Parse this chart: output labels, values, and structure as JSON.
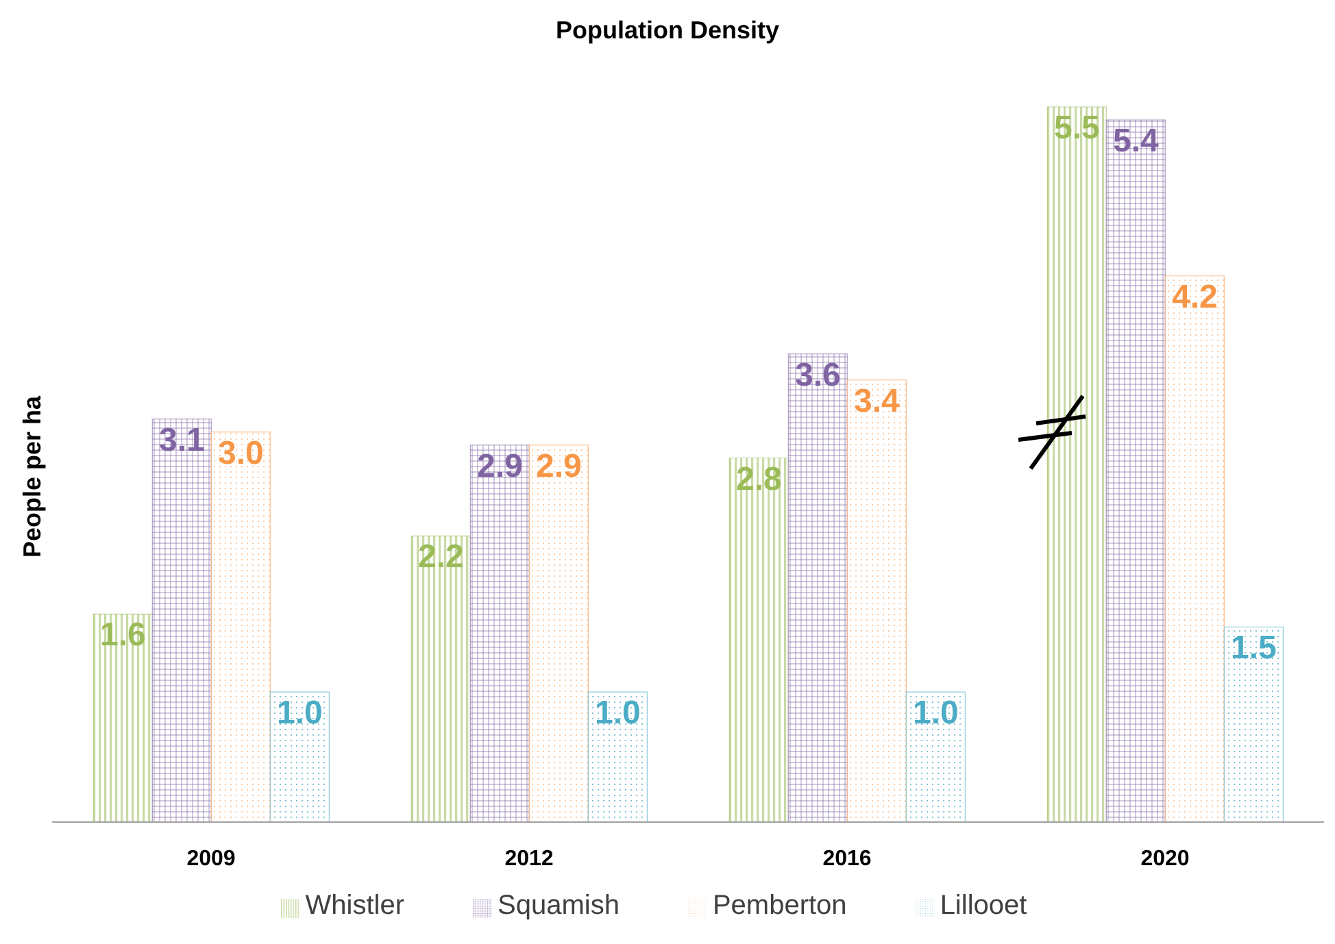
{
  "chart_data": {
    "type": "bar",
    "title": "Population Density",
    "ylabel": "People per ha",
    "categories": [
      "2009",
      "2012",
      "2016",
      "2020"
    ],
    "series": [
      {
        "name": "Whistler",
        "color": "#9bbb59",
        "values": [
          1.6,
          2.2,
          2.8,
          5.5
        ],
        "value_labels": [
          "1.6",
          "2.2",
          "2.8",
          "5.5"
        ]
      },
      {
        "name": "Squamish",
        "color": "#8064a2",
        "values": [
          3.1,
          2.9,
          3.6,
          5.4
        ],
        "value_labels": [
          "3.1",
          "2.9",
          "3.6",
          "5.4"
        ]
      },
      {
        "name": "Pemberton",
        "color": "#f79646",
        "values": [
          3.0,
          2.9,
          3.4,
          4.2
        ],
        "value_labels": [
          "3.0",
          "2.9",
          "3.4",
          "4.2"
        ]
      },
      {
        "name": "Lillooet",
        "color": "#4bacc6",
        "values": [
          1.0,
          1.0,
          1.0,
          1.5
        ],
        "value_labels": [
          "1.0",
          "1.0",
          "1.0",
          "1.5"
        ]
      }
    ],
    "legend": "bottom",
    "grid": false
  }
}
